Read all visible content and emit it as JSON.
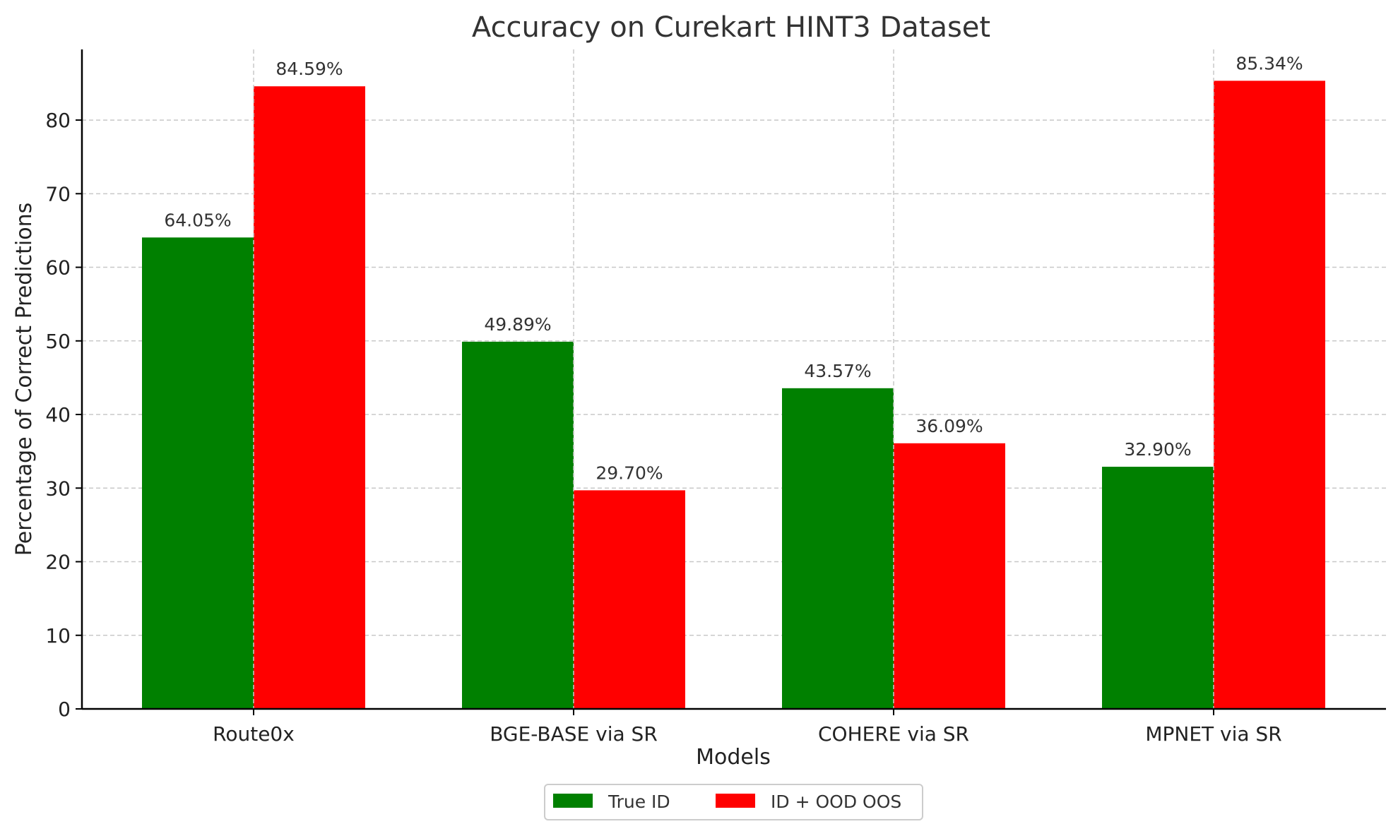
{
  "chart_data": {
    "type": "bar",
    "title": "Accuracy on Curekart HINT3 Dataset",
    "xlabel": "Models",
    "ylabel": "Percentage of Correct Predictions",
    "categories": [
      "Route0x",
      "BGE-BASE via SR",
      "COHERE via SR",
      "MPNET via SR"
    ],
    "series": [
      {
        "name": "True ID",
        "color": "#008000",
        "values": [
          64.05,
          49.89,
          43.57,
          32.9
        ],
        "labels": [
          "64.05%",
          "49.89%",
          "43.57%",
          "32.90%"
        ]
      },
      {
        "name": "ID + OOD OOS",
        "color": "#ff0000",
        "values": [
          84.59,
          29.7,
          36.09,
          85.34
        ],
        "labels": [
          "84.59%",
          "29.70%",
          "36.09%",
          "85.34%"
        ]
      }
    ],
    "ylim": [
      0,
      89.6
    ],
    "yticks": [
      0,
      10,
      20,
      30,
      40,
      50,
      60,
      70,
      80
    ],
    "grid": true,
    "legend": "bottom-center"
  }
}
